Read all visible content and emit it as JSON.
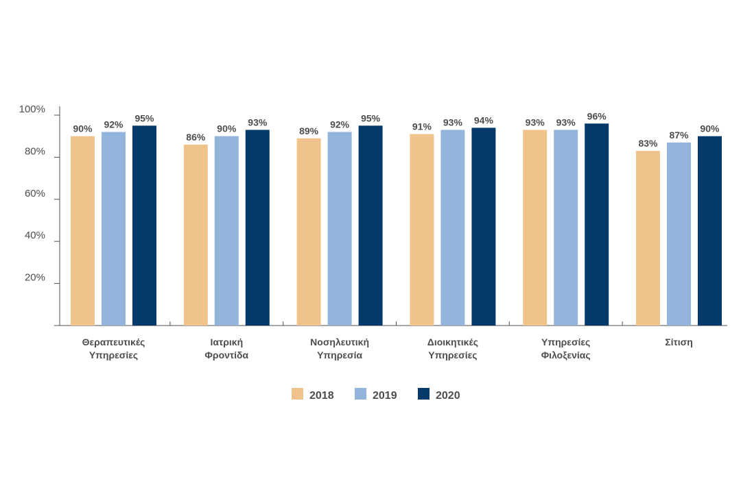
{
  "colors": {
    "2018": "#f0c38d",
    "2019": "#94b5db",
    "2020": "#033a69",
    "text": "#4d4d4d",
    "axis": "#4d4d4d"
  },
  "chart_data": {
    "type": "bar",
    "title": "",
    "xlabel": "",
    "ylabel": "",
    "ylim": [
      0,
      105
    ],
    "yticks": [
      20,
      40,
      60,
      80,
      100
    ],
    "ytick_labels": [
      "20%",
      "40%",
      "60%",
      "80%",
      "100%"
    ],
    "categories": [
      [
        "Θεραπευτικές",
        "Υπηρεσίες"
      ],
      [
        "Ιατρική",
        "Φροντίδα"
      ],
      [
        "Νοσηλευτική",
        "Υπηρεσία"
      ],
      [
        "Διοικητικές",
        "Υπηρεσίες"
      ],
      [
        "Υπηρεσίες",
        "Φιλοξενίας"
      ],
      [
        "Σίτιση"
      ]
    ],
    "series": [
      {
        "name": "2018",
        "color_key": "2018",
        "values": [
          90,
          86,
          89,
          91,
          93,
          83
        ],
        "labels": [
          "90%",
          "86%",
          "89%",
          "91%",
          "93%",
          "83%"
        ]
      },
      {
        "name": "2019",
        "color_key": "2019",
        "values": [
          92,
          90,
          92,
          93,
          93,
          87
        ],
        "labels": [
          "92%",
          "90%",
          "92%",
          "93%",
          "93%",
          "87%"
        ]
      },
      {
        "name": "2020",
        "color_key": "2020",
        "values": [
          95,
          93,
          95,
          94,
          96,
          90
        ],
        "labels": [
          "95%",
          "93%",
          "95%",
          "94%",
          "96%",
          "90%"
        ]
      }
    ],
    "legend_position": "bottom",
    "grid": false
  }
}
